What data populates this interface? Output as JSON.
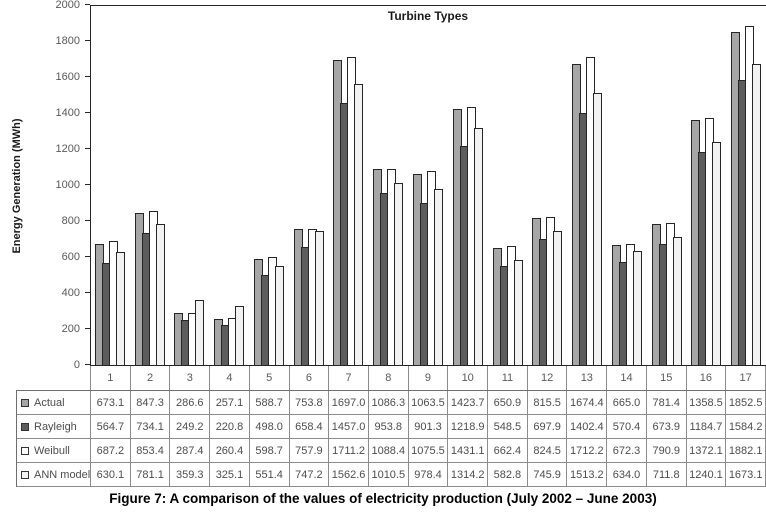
{
  "figure": {
    "caption": "Figure 7: A comparison of the values of electricity production (July 2002 – June 2003)"
  },
  "chart_data": {
    "type": "bar",
    "title": "Turbine Types",
    "xlabel": "",
    "ylabel": "Energy Generation (MWh)",
    "ylim": [
      0,
      2000
    ],
    "ytick_step": 200,
    "grid": false,
    "legend_position": "table-left-column",
    "bar_border_color": "#262626",
    "categories": [
      "1",
      "2",
      "3",
      "4",
      "5",
      "6",
      "7",
      "8",
      "9",
      "10",
      "11",
      "12",
      "13",
      "14",
      "15",
      "16",
      "17"
    ],
    "series": [
      {
        "name": "Actual",
        "color": "#a6a6a6",
        "values": [
          673.1,
          847.3,
          286.6,
          257.1,
          588.7,
          753.8,
          1697.0,
          1086.3,
          1063.5,
          1423.7,
          650.9,
          815.5,
          1674.4,
          665.0,
          781.4,
          1358.5,
          1852.5
        ]
      },
      {
        "name": "Rayleigh",
        "color": "#5c5c5c",
        "values": [
          564.7,
          734.1,
          249.2,
          220.8,
          498.0,
          658.4,
          1457.0,
          953.8,
          901.3,
          1218.9,
          548.5,
          697.9,
          1402.4,
          570.4,
          673.9,
          1184.7,
          1584.2
        ]
      },
      {
        "name": "Weibull",
        "color": "#ffffff",
        "values": [
          687.2,
          853.4,
          287.4,
          260.4,
          598.7,
          757.9,
          1711.2,
          1088.4,
          1075.5,
          1431.1,
          662.4,
          824.5,
          1712.2,
          672.3,
          790.9,
          1372.1,
          1882.1
        ]
      },
      {
        "name": "ANN model",
        "color": "#f2f2f2",
        "values": [
          630.1,
          781.1,
          359.3,
          325.1,
          551.4,
          747.2,
          1562.6,
          1010.5,
          978.4,
          1314.2,
          582.8,
          745.9,
          1513.2,
          634.0,
          711.8,
          1240.1,
          1673.1
        ]
      }
    ]
  }
}
